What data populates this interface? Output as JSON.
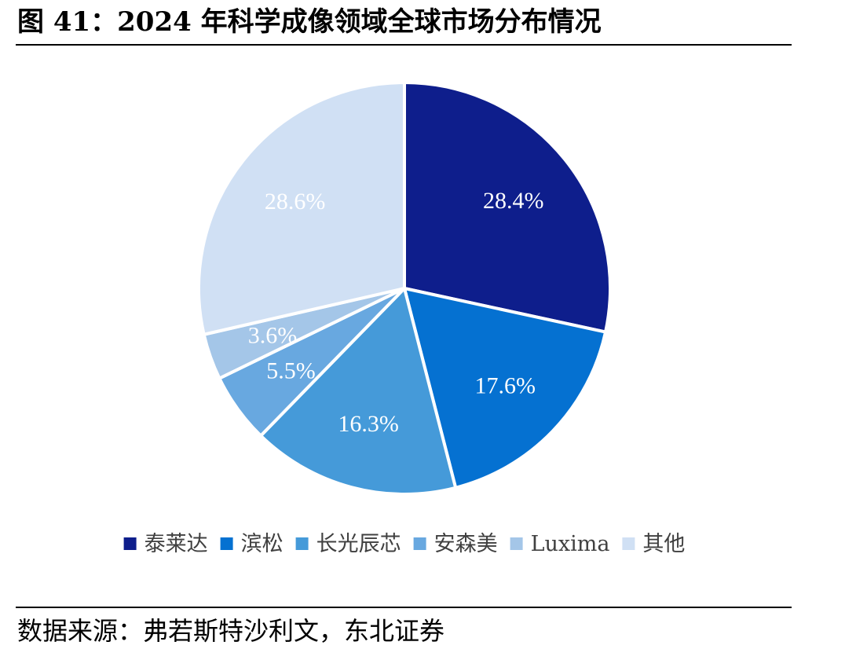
{
  "figure": {
    "title": "图 41：2024 年科学成像领域全球市场分布情况",
    "source": "数据来源：弗若斯特沙利文，东北证券"
  },
  "chart_data": {
    "type": "pie",
    "title": "",
    "legend_position": "bottom",
    "categories": [
      "泰莱达",
      "滨松",
      "长光辰芯",
      "安森美",
      "Luxima",
      "其他"
    ],
    "values": [
      28.4,
      17.6,
      16.3,
      5.5,
      3.6,
      28.6
    ],
    "labels": [
      "28.4%",
      "17.6%",
      "16.3%",
      "5.5%",
      "3.6%",
      "28.6%"
    ],
    "colors": [
      "#0e1e8c",
      "#0571d1",
      "#459ad9",
      "#68a8e0",
      "#a4c6e8",
      "#d0e0f4"
    ],
    "start": "12 o'clock",
    "direction": "clockwise"
  }
}
